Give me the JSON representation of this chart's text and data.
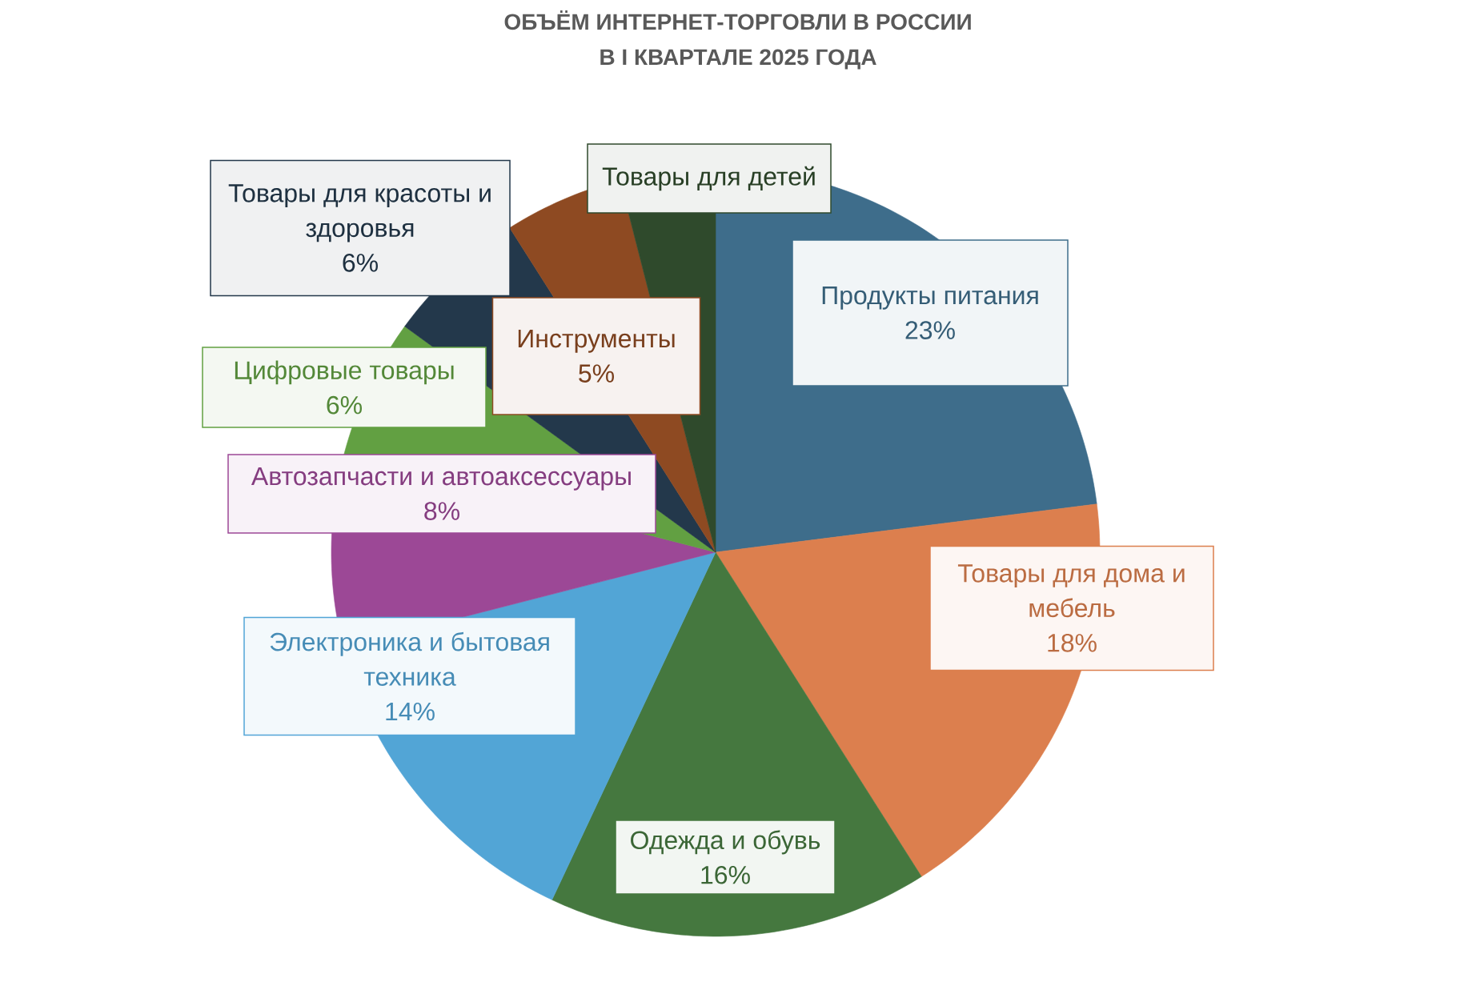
{
  "chart_data": {
    "type": "pie",
    "title": "ОБЪЁМ ИНТЕРНЕТ-ТОРГОВЛИ В РОССИИ В I КВАРТАЛЕ 2025 ГОДА",
    "categories": [
      "Продукты питания",
      "Товары для дома и мебель",
      "Одежда и обувь",
      "Электроника и бытовая техника",
      "Автозапчасти и автоаксессуары",
      "Цифровые товары",
      "Товары для красоты и здоровья",
      "Инструменты",
      "Товары для детей"
    ],
    "values": [
      23,
      18,
      16,
      14,
      8,
      6,
      6,
      5,
      4
    ],
    "colors": [
      "#3e6d8b",
      "#dc7f4e",
      "#45783f",
      "#52a5d6",
      "#9c4896",
      "#62a042",
      "#23384b",
      "#8e4a22",
      "#2f4a2c"
    ],
    "value_labels": [
      "23%",
      "18%",
      "16%",
      "14%",
      "8%",
      "6%",
      "6%",
      "5%",
      null
    ]
  }
}
